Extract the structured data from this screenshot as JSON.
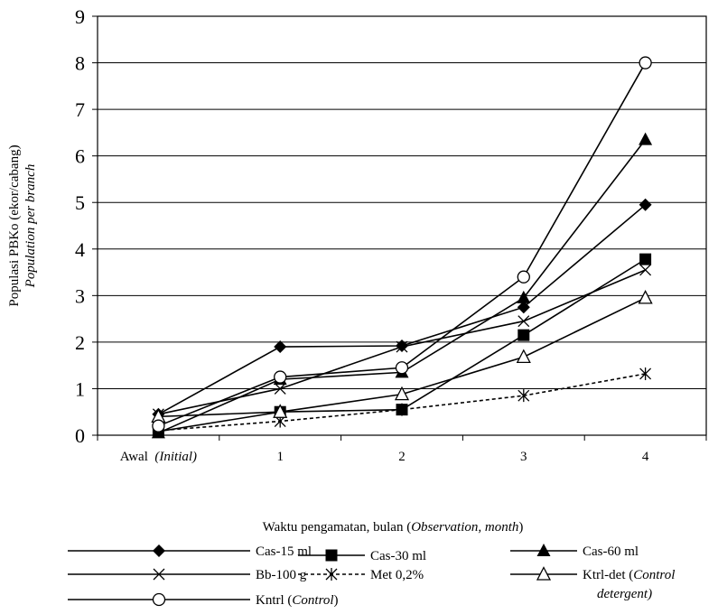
{
  "chart_data": {
    "type": "line",
    "ylabel_line1": "Populasi PBKo (ekor/cabang)",
    "ylabel_line2": "Population per branch",
    "xlabel_prefix": "Waktu pengamatan, bulan (",
    "xlabel_italic": "Observation, month",
    "xlabel_suffix": ")",
    "categories": [
      {
        "main": "Awal",
        "italic": "(Initial)"
      },
      {
        "main": "1",
        "italic": ""
      },
      {
        "main": "2",
        "italic": ""
      },
      {
        "main": "3",
        "italic": ""
      },
      {
        "main": "4",
        "italic": ""
      }
    ],
    "ylim": [
      0,
      9
    ],
    "yticks": [
      0,
      1,
      2,
      3,
      4,
      5,
      6,
      7,
      8,
      9
    ],
    "grid": "horizontal",
    "legend_placement": "bottom",
    "series": [
      {
        "name": "Cas-15 ml",
        "name_italic": "",
        "name_suffix": "",
        "marker": "diamond",
        "dash": false,
        "values": [
          0.45,
          1.9,
          1.92,
          2.75,
          4.95
        ]
      },
      {
        "name": "Cas-30 ml",
        "name_italic": "",
        "name_suffix": "",
        "marker": "square",
        "dash": false,
        "values": [
          0.08,
          0.5,
          0.55,
          2.15,
          3.78
        ]
      },
      {
        "name": "Cas-60 ml",
        "name_italic": "",
        "name_suffix": "",
        "marker": "triangle-filled",
        "dash": false,
        "values": [
          0.05,
          1.2,
          1.35,
          2.95,
          6.35
        ]
      },
      {
        "name": "Bb-100 g",
        "name_italic": "",
        "name_suffix": "",
        "marker": "x",
        "dash": false,
        "values": [
          0.45,
          1.0,
          1.9,
          2.45,
          3.55
        ]
      },
      {
        "name": "Met 0,2%",
        "name_italic": "",
        "name_suffix": "",
        "marker": "star",
        "dash": true,
        "values": [
          0.1,
          0.3,
          0.55,
          0.85,
          1.32
        ]
      },
      {
        "name": "Ktrl-det (",
        "name_italic": "Control",
        "name_suffix": "",
        "name_line2": "detergent)",
        "marker": "triangle-open",
        "dash": false,
        "values": [
          0.4,
          0.5,
          0.88,
          1.68,
          2.95
        ]
      },
      {
        "name": "Kntrl (",
        "name_italic": "Control",
        "name_suffix": ")",
        "marker": "circle-open",
        "dash": false,
        "values": [
          0.2,
          1.25,
          1.45,
          3.4,
          8.0
        ]
      }
    ]
  }
}
